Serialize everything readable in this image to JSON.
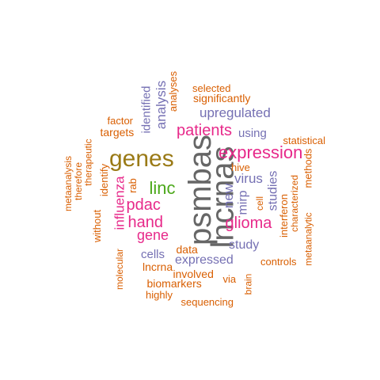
{
  "palette": {
    "gray": "#666666",
    "orange": "#d95f02",
    "purple": "#7570b3",
    "magenta": "#e7298a",
    "olive": "#9a7a16",
    "green": "#4ba81a"
  },
  "words": [
    {
      "text": "psmbas",
      "color": "gray"
    },
    {
      "text": "lncrnas",
      "color": "gray"
    },
    {
      "text": "genes",
      "color": "olive"
    },
    {
      "text": "expression",
      "color": "magenta"
    },
    {
      "text": "linc",
      "color": "green"
    },
    {
      "text": "patients",
      "color": "magenta"
    },
    {
      "text": "pdac",
      "color": "magenta"
    },
    {
      "text": "hand",
      "color": "magenta"
    },
    {
      "text": "glioma",
      "color": "magenta"
    },
    {
      "text": "gene",
      "color": "magenta"
    },
    {
      "text": "influenza",
      "color": "magenta"
    },
    {
      "text": "analysis",
      "color": "purple"
    },
    {
      "text": "identified",
      "color": "purple"
    },
    {
      "text": "upregulated",
      "color": "purple"
    },
    {
      "text": "using",
      "color": "purple"
    },
    {
      "text": "virus",
      "color": "purple"
    },
    {
      "text": "new",
      "color": "purple"
    },
    {
      "text": "mirp",
      "color": "purple"
    },
    {
      "text": "studies",
      "color": "purple"
    },
    {
      "text": "study",
      "color": "purple"
    },
    {
      "text": "cells",
      "color": "purple"
    },
    {
      "text": "expressed",
      "color": "purple"
    },
    {
      "text": "selected",
      "color": "orange"
    },
    {
      "text": "significantly",
      "color": "orange"
    },
    {
      "text": "analyses",
      "color": "orange"
    },
    {
      "text": "factor",
      "color": "orange"
    },
    {
      "text": "targets",
      "color": "orange"
    },
    {
      "text": "statistical",
      "color": "orange"
    },
    {
      "text": "methods",
      "color": "orange"
    },
    {
      "text": "hive",
      "color": "orange"
    },
    {
      "text": "cell",
      "color": "orange"
    },
    {
      "text": "interferon",
      "color": "orange"
    },
    {
      "text": "characterized",
      "color": "orange"
    },
    {
      "text": "metaanalytic",
      "color": "orange"
    },
    {
      "text": "therefore",
      "color": "orange"
    },
    {
      "text": "therapeutic",
      "color": "orange"
    },
    {
      "text": "metaanalysis",
      "color": "orange"
    },
    {
      "text": "identify",
      "color": "orange"
    },
    {
      "text": "rab",
      "color": "orange"
    },
    {
      "text": "without",
      "color": "orange"
    },
    {
      "text": "molecular",
      "color": "orange"
    },
    {
      "text": "data",
      "color": "orange"
    },
    {
      "text": "lncrna",
      "color": "orange"
    },
    {
      "text": "involved",
      "color": "orange"
    },
    {
      "text": "biomarkers",
      "color": "orange"
    },
    {
      "text": "via",
      "color": "orange"
    },
    {
      "text": "brain",
      "color": "orange"
    },
    {
      "text": "highly",
      "color": "orange"
    },
    {
      "text": "sequencing",
      "color": "orange"
    },
    {
      "text": "controls",
      "color": "orange"
    }
  ]
}
